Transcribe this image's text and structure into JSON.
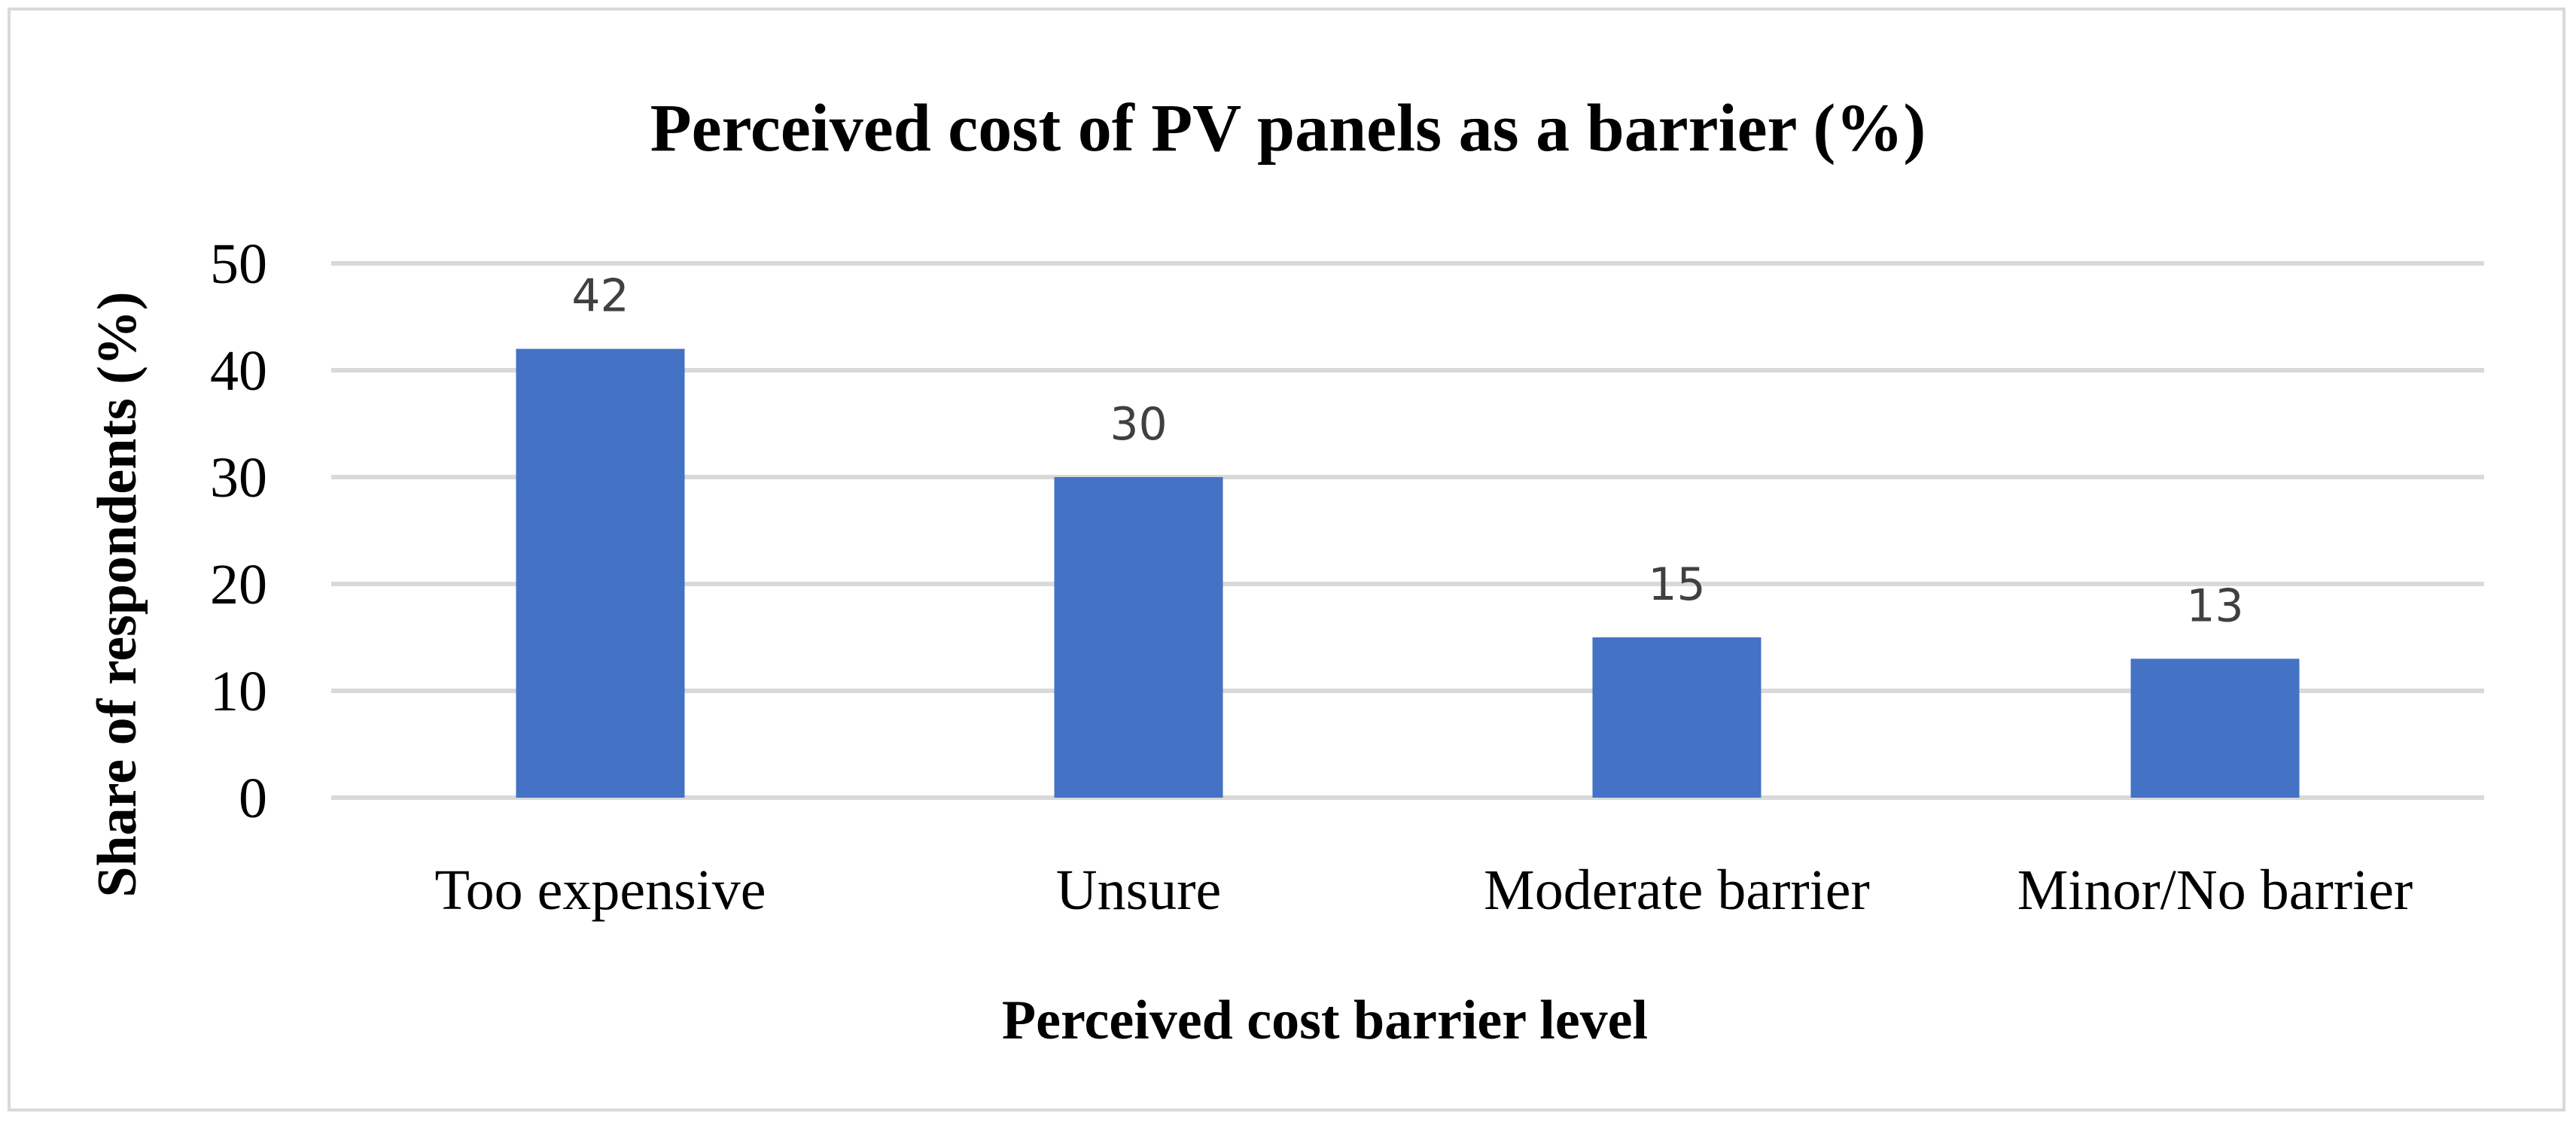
{
  "chart_data": {
    "type": "bar",
    "title": "Perceived cost of PV panels as a barrier (%)",
    "xlabel": "Perceived cost barrier level",
    "ylabel": "Share of respondents (%)",
    "categories": [
      "Too expensive",
      "Unsure",
      "Moderate barrier",
      "Minor/No barrier"
    ],
    "values": [
      42,
      30,
      15,
      13
    ],
    "ylim": [
      0,
      50
    ],
    "yticks": [
      0,
      10,
      20,
      30,
      40,
      50
    ],
    "grid": true,
    "legend": "none",
    "bar_color": "#4472c4"
  }
}
